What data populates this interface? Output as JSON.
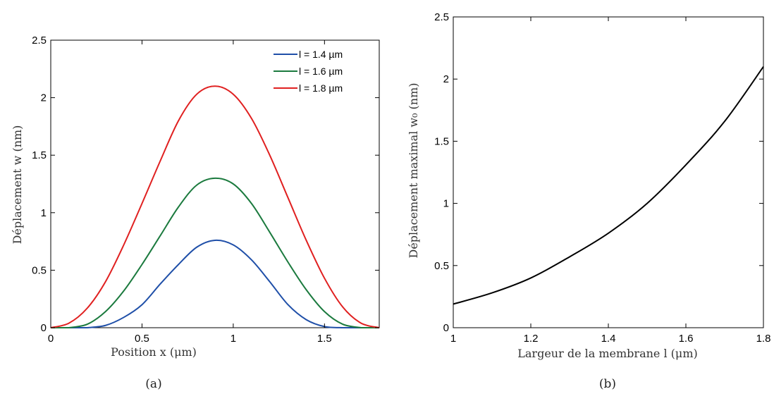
{
  "chart_data": [
    {
      "type": "line",
      "caption": "(a)",
      "title": "",
      "xlabel": "Position x (μm)",
      "ylabel": "Déplacement w (nm)",
      "xlim": [
        0,
        1.8
      ],
      "ylim": [
        0,
        2.5
      ],
      "xticks": [
        "0",
        "0.5",
        "1",
        "1.5"
      ],
      "xtick_values": [
        0,
        0.5,
        1,
        1.5
      ],
      "yticks": [
        "0",
        "0.5",
        "1",
        "1.5",
        "2",
        "2.5"
      ],
      "ytick_values": [
        0,
        0.5,
        1,
        1.5,
        2,
        2.5
      ],
      "legend_position": "top-right",
      "grid": false,
      "series": [
        {
          "name": "l = 1.4 µm",
          "color": "#1f4fa8",
          "x": [
            0.2,
            0.3,
            0.4,
            0.5,
            0.6,
            0.7,
            0.8,
            0.9,
            1.0,
            1.1,
            1.2,
            1.3,
            1.4,
            1.5,
            1.6
          ],
          "y": [
            0.0,
            0.02,
            0.09,
            0.2,
            0.38,
            0.55,
            0.7,
            0.76,
            0.72,
            0.59,
            0.4,
            0.2,
            0.07,
            0.01,
            0.0
          ]
        },
        {
          "name": "l = 1.6 µm",
          "color": "#1b7a3e",
          "x": [
            0.1,
            0.2,
            0.3,
            0.4,
            0.5,
            0.6,
            0.7,
            0.8,
            0.9,
            1.0,
            1.1,
            1.2,
            1.3,
            1.4,
            1.5,
            1.6,
            1.7
          ],
          "y": [
            0.0,
            0.03,
            0.14,
            0.32,
            0.55,
            0.8,
            1.05,
            1.24,
            1.3,
            1.25,
            1.08,
            0.83,
            0.57,
            0.33,
            0.14,
            0.03,
            0.0
          ]
        },
        {
          "name": "l = 1.8 µm",
          "color": "#e02020",
          "x": [
            0.0,
            0.1,
            0.2,
            0.3,
            0.4,
            0.5,
            0.6,
            0.7,
            0.8,
            0.9,
            1.0,
            1.1,
            1.2,
            1.3,
            1.4,
            1.5,
            1.6,
            1.7,
            1.8
          ],
          "y": [
            0.0,
            0.04,
            0.17,
            0.4,
            0.72,
            1.08,
            1.45,
            1.8,
            2.03,
            2.1,
            2.03,
            1.82,
            1.5,
            1.13,
            0.76,
            0.43,
            0.18,
            0.04,
            0.0
          ]
        }
      ]
    },
    {
      "type": "line",
      "caption": "(b)",
      "title": "",
      "xlabel": "Largeur de la membrane l (μm)",
      "ylabel": "Déplacement maximal w₀ (nm)",
      "xlim": [
        1,
        1.8
      ],
      "ylim": [
        0,
        2.5
      ],
      "xticks": [
        "1",
        "1.2",
        "1.4",
        "1.6",
        "1.8"
      ],
      "xtick_values": [
        1,
        1.2,
        1.4,
        1.6,
        1.8
      ],
      "yticks": [
        "0",
        "0.5",
        "1",
        "1.5",
        "2",
        "2.5"
      ],
      "ytick_values": [
        0,
        0.5,
        1,
        1.5,
        2,
        2.5
      ],
      "grid": false,
      "series": [
        {
          "name": "",
          "color": "#000000",
          "x": [
            1.0,
            1.1,
            1.2,
            1.3,
            1.4,
            1.5,
            1.6,
            1.7,
            1.8
          ],
          "y": [
            0.19,
            0.28,
            0.4,
            0.57,
            0.76,
            1.0,
            1.31,
            1.66,
            2.1
          ]
        }
      ]
    }
  ]
}
